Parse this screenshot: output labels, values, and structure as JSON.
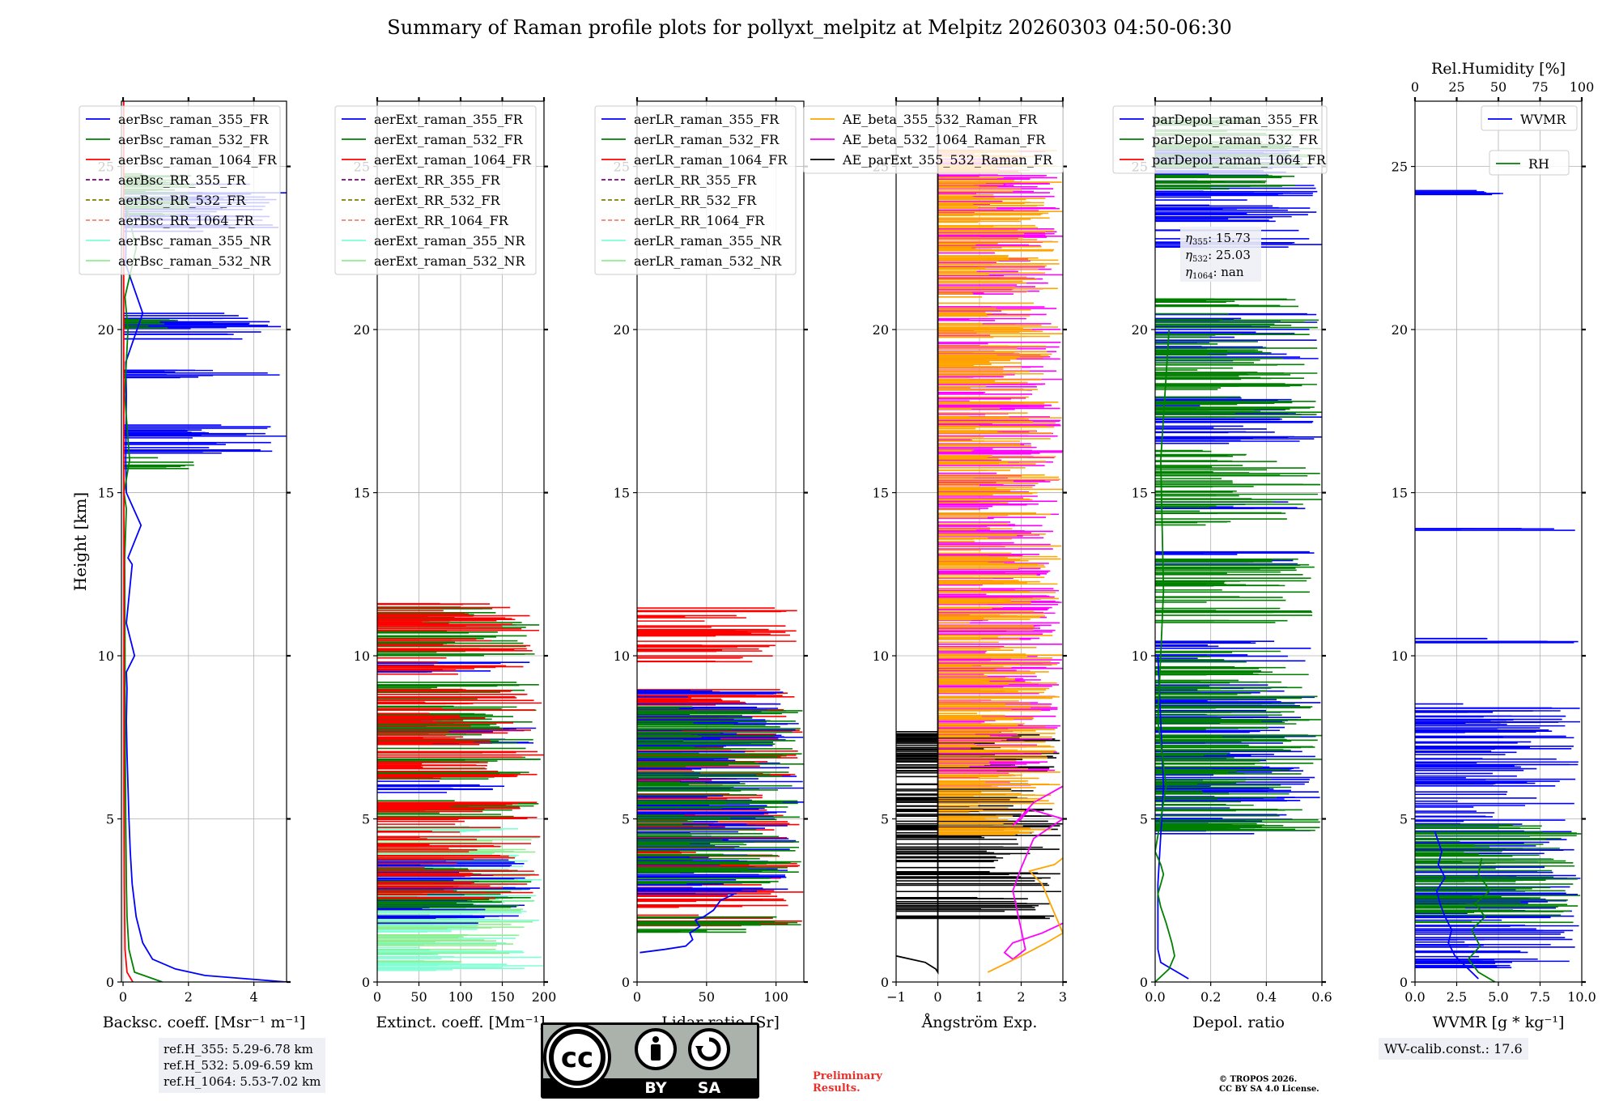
{
  "title": "Summary of Raman profile plots for pollyxt_melpitz at Melpitz 20260303 04:50-06:30",
  "y_label": "Height [km]",
  "y_ticks": [
    "0",
    "5",
    "10",
    "15",
    "20",
    "25"
  ],
  "colors": {
    "blue": "#0000ff",
    "green": "#008000",
    "red": "#ff0000",
    "purple": "#800080",
    "olive": "#808000",
    "salmon": "#fa8072",
    "cyan": "#7fffd4",
    "lightgreen": "#90ee90",
    "orange": "#ffa500",
    "magenta": "#ff00ff",
    "black": "#000000"
  },
  "chart_data": [
    {
      "type": "line",
      "id": "bsc",
      "xlabel": "Backsc. coeff. [Msr⁻¹ m⁻¹]",
      "x_ticks": [
        "0",
        "2",
        "4"
      ],
      "xlim": [
        -0.05,
        5.0
      ],
      "ylim": [
        0,
        27
      ],
      "legend": [
        "aerBsc_raman_355_FR",
        "aerBsc_raman_532_FR",
        "aerBsc_raman_1064_FR",
        "aerBsc_RR_355_FR",
        "aerBsc_RR_532_FR",
        "aerBsc_RR_1064_FR",
        "aerBsc_raman_355_NR",
        "aerBsc_raman_532_NR"
      ],
      "series": [
        {
          "name": "aerBsc_raman_355_FR",
          "x": [
            5.0,
            2.5,
            1.6,
            0.9,
            0.6,
            0.4,
            0.28,
            0.22,
            0.18,
            0.15,
            0.12,
            0.1,
            0.12,
            0.1,
            0.35,
            0.1,
            0.28,
            0.15,
            0.55,
            0.1,
            0.08,
            0.1,
            0.08,
            0.6,
            0.08,
            0.1
          ],
          "y": [
            0,
            0.2,
            0.4,
            0.7,
            1.2,
            2.0,
            3.0,
            4.0,
            5.0,
            6.0,
            7.0,
            8.0,
            9.0,
            9.5,
            10.0,
            11.0,
            12.8,
            13.0,
            14.0,
            15.0,
            16.0,
            18.0,
            19.0,
            20.5,
            22.0,
            24.0
          ]
        },
        {
          "name": "aerBsc_raman_532_FR",
          "x": [
            1.2,
            0.35,
            0.18,
            0.12,
            0.1,
            0.08,
            0.06,
            0.06,
            0.05,
            0.1,
            0.03,
            0.2,
            0.05,
            0.15,
            0.06,
            0.4,
            0.05
          ],
          "y": [
            0,
            0.3,
            1.0,
            2.0,
            3.0,
            5.0,
            8.0,
            10.0,
            13.0,
            14.5,
            15.0,
            16.0,
            18.0,
            20.0,
            21.0,
            22.5,
            24.0
          ]
        },
        {
          "name": "aerBsc_raman_1064_FR",
          "x": [
            0.3,
            0.12,
            0.06,
            0.04,
            0.03,
            0.03,
            0.02,
            0.02
          ],
          "y": [
            0,
            0.3,
            1.0,
            3.0,
            6.0,
            12.0,
            20.0,
            27.0
          ]
        }
      ],
      "spike_bands": [
        {
          "name": "aerBsc_raman_355_FR",
          "ranges": [
            [
              16.1,
              17.1
            ],
            [
              18.4,
              18.9
            ],
            [
              19.7,
              20.5
            ],
            [
              23.0,
              24.5
            ]
          ],
          "max": 5.0
        },
        {
          "name": "aerBsc_raman_532_FR",
          "ranges": [
            [
              15.7,
              16.1
            ],
            [
              20.0,
              20.4
            ],
            [
              23.5,
              24.8
            ]
          ],
          "max": 2.2
        }
      ]
    },
    {
      "type": "line",
      "id": "ext",
      "xlabel": "Extinct. coeff. [Mm⁻¹]",
      "x_ticks": [
        "0",
        "50",
        "100",
        "150",
        "200"
      ],
      "xlim": [
        0,
        200
      ],
      "ylim": [
        0,
        27
      ],
      "legend": [
        "aerExt_raman_355_FR",
        "aerExt_raman_532_FR",
        "aerExt_raman_1064_FR",
        "aerExt_RR_355_FR",
        "aerExt_RR_532_FR",
        "aerExt_RR_1064_FR",
        "aerExt_raman_355_NR",
        "aerExt_raman_532_NR"
      ],
      "spike_bands": [
        {
          "name": "aerExt_raman_355_NR",
          "ranges": [
            [
              0.3,
              4.8
            ]
          ],
          "max": 200
        },
        {
          "name": "aerExt_raman_532_NR",
          "ranges": [
            [
              0.6,
              4.4
            ]
          ],
          "max": 190
        },
        {
          "name": "aerExt_raman_355_FR",
          "ranges": [
            [
              1.8,
              3.8
            ],
            [
              5.8,
              6.2
            ],
            [
              7.3,
              8.1
            ],
            [
              9.5,
              9.9
            ]
          ],
          "max": 200
        },
        {
          "name": "aerExt_raman_532_FR",
          "ranges": [
            [
              2.2,
              3.5
            ],
            [
              5.0,
              5.6
            ],
            [
              6.2,
              9.2
            ],
            [
              10.0,
              11.6
            ]
          ],
          "max": 200
        },
        {
          "name": "aerExt_raman_1064_FR",
          "ranges": [
            [
              2.5,
              5.6
            ],
            [
              6.2,
              9.0
            ],
            [
              9.4,
              11.6
            ]
          ],
          "max": 200
        }
      ]
    },
    {
      "type": "line",
      "id": "lr",
      "xlabel": "Lidar ratio [Sr]",
      "x_ticks": [
        "0",
        "50",
        "100"
      ],
      "xlim": [
        0,
        120
      ],
      "ylim": [
        0,
        27
      ],
      "legend": [
        "aerLR_raman_355_FR",
        "aerLR_raman_532_FR",
        "aerLR_raman_1064_FR",
        "aerLR_RR_355_FR",
        "aerLR_RR_532_FR",
        "aerLR_RR_1064_FR",
        "aerLR_raman_355_NR",
        "aerLR_raman_532_NR"
      ],
      "series": [
        {
          "name": "aerLR_raman_355_FR",
          "x": [
            2,
            20,
            35,
            40,
            38,
            45,
            42,
            48,
            55,
            60,
            70
          ],
          "y": [
            0.9,
            1.0,
            1.1,
            1.3,
            1.5,
            1.7,
            1.9,
            2.0,
            2.2,
            2.5,
            2.7
          ]
        }
      ],
      "spike_bands": [
        {
          "name": "aerLR_raman_1064_FR",
          "ranges": [
            [
              1.5,
              9.0
            ],
            [
              9.8,
              11.5
            ]
          ],
          "max": 120
        },
        {
          "name": "aerLR_raman_355_FR",
          "ranges": [
            [
              2.7,
              9.0
            ]
          ],
          "max": 120
        },
        {
          "name": "aerLR_raman_532_FR",
          "ranges": [
            [
              1.5,
              2.0
            ],
            [
              3.0,
              8.5
            ]
          ],
          "max": 120
        }
      ]
    },
    {
      "type": "line",
      "id": "ae",
      "xlabel": "Ångström Exp.",
      "x_ticks": [
        "−1",
        "0",
        "1",
        "2",
        "3"
      ],
      "xlim": [
        -1,
        3
      ],
      "ylim": [
        0,
        27
      ],
      "legend": [
        "AE_beta_355_532_Raman_FR",
        "AE_beta_532_1064_Raman_FR",
        "AE_parExt_355_532_Raman_FR"
      ],
      "series": [
        {
          "name": "AE_parExt_355_532_Raman_FR",
          "x": [
            -1,
            -0.3,
            -0.05,
            0,
            0,
            0,
            0,
            0,
            0,
            0,
            0,
            0,
            0,
            0,
            0
          ],
          "y": [
            0.8,
            0.6,
            0.4,
            0.3,
            7.7,
            10.8,
            11.7,
            11.7,
            24.5,
            25.0,
            26.0,
            26.5,
            26.8,
            27.0,
            27.0
          ]
        },
        {
          "name": "AE_beta_532_1064_Raman_FR",
          "x": [
            3.0,
            2.5,
            1.8,
            1.6,
            1.8,
            2.1,
            1.8,
            2.0,
            2.3,
            3.0,
            2.2,
            2.0,
            1.8,
            2.3,
            3.0
          ],
          "y": [
            1.8,
            1.5,
            1.2,
            0.9,
            0.7,
            1.0,
            2.8,
            3.5,
            4.4,
            5.0,
            5.3,
            5.0,
            4.8,
            5.5,
            6.0
          ]
        },
        {
          "name": "AE_beta_355_532_Raman_FR",
          "x": [
            1.2,
            2.0,
            2.6,
            3.0,
            2.5,
            2.2,
            2.8,
            3.0
          ],
          "y": [
            0.3,
            0.8,
            1.2,
            1.5,
            3.0,
            3.4,
            3.6,
            3.8
          ]
        }
      ],
      "spike_bands": [
        {
          "name": "AE_parExt_355_532_Raman_FR",
          "ranges": [
            [
              1.8,
              7.7
            ]
          ],
          "max": 3.0
        },
        {
          "name": "AE_beta_532_1064_Raman_FR",
          "ranges": [
            [
              6.0,
              25.5
            ]
          ],
          "max": 3.0
        },
        {
          "name": "AE_beta_355_532_Raman_FR",
          "ranges": [
            [
              4.5,
              25.5
            ]
          ],
          "max": 3.0
        }
      ]
    },
    {
      "type": "line",
      "id": "depol",
      "xlabel": "Depol. ratio",
      "x_ticks": [
        "0.0",
        "0.2",
        "0.4",
        "0.6"
      ],
      "xlim": [
        0,
        0.6
      ],
      "ylim": [
        0,
        27
      ],
      "legend": [
        "parDepol_raman_355_FR",
        "parDepol_raman_532_FR",
        "parDepol_raman_1064_FR"
      ],
      "annotation": {
        "l1": "η",
        "s1": "355",
        "v1": ": 15.73",
        "s2": "532",
        "v2": ": 25.03",
        "s3": "1064",
        "v3": ": nan"
      },
      "series": [
        {
          "name": "parDepol_raman_355_FR",
          "x": [
            0.12,
            0.08,
            0.04,
            0.02,
            0.01,
            0.01,
            0.02,
            0.03,
            0.01
          ],
          "y": [
            0.1,
            0.3,
            0.5,
            0.6,
            1.0,
            3.0,
            4.5,
            6.0,
            10.0
          ]
        },
        {
          "name": "parDepol_raman_532_FR",
          "x": [
            0.0,
            0.05,
            0.07,
            0.06,
            0.04,
            0.02,
            0.01,
            0.02,
            0.03,
            0.02,
            0.0,
            0.02,
            0.04,
            0.01,
            0.03,
            0.02,
            0.05
          ],
          "y": [
            0.0,
            0.4,
            0.8,
            1.2,
            1.8,
            2.3,
            2.7,
            3.0,
            3.3,
            3.6,
            4.0,
            5.0,
            6.0,
            8.0,
            12.0,
            16.0,
            20.0
          ]
        }
      ],
      "spike_bands": [
        {
          "name": "parDepol_raman_355_FR",
          "ranges": [
            [
              4.5,
              9.2
            ],
            [
              9.8,
              10.5
            ],
            [
              12.8,
              13.2
            ],
            [
              14.5,
              14.8
            ],
            [
              16.5,
              18.0
            ],
            [
              19.0,
              20.5
            ],
            [
              22.5,
              25.6
            ]
          ],
          "max": 0.6
        },
        {
          "name": "parDepol_raman_532_FR",
          "ranges": [
            [
              4.6,
              10.2
            ],
            [
              11.0,
              13.0
            ],
            [
              14.0,
              16.3
            ],
            [
              17.3,
              21.0
            ],
            [
              24.3,
              26.5
            ]
          ],
          "max": 0.6
        }
      ]
    },
    {
      "type": "line",
      "id": "wv",
      "xlabel": "WVMR [g * kg⁻¹]",
      "x_ticks": [
        "0.0",
        "2.5",
        "5.0",
        "7.5",
        "10.0"
      ],
      "xlim": [
        0,
        10
      ],
      "ylim": [
        0,
        27
      ],
      "top_xlabel": "Rel.Humidity [%]",
      "top_ticks": [
        "0",
        "25",
        "50",
        "75",
        "100"
      ],
      "legend": [
        "WVMR",
        "RH"
      ],
      "calib": "WV-calib.const.: 17.6",
      "series": [
        {
          "name": "WVMR",
          "x": [
            3.8,
            3.0,
            2.4,
            2.0,
            2.2,
            1.8,
            1.5,
            1.3,
            1.8,
            1.4,
            1.6,
            1.2
          ],
          "y": [
            0.1,
            0.5,
            0.8,
            1.2,
            1.6,
            2.0,
            2.4,
            2.8,
            3.2,
            3.6,
            4.0,
            4.6
          ]
        },
        {
          "name": "RH",
          "x": [
            4.8,
            3.8,
            3.2,
            3.9,
            3.4,
            4.2,
            3.6,
            4.5,
            3.8,
            4.0
          ],
          "y": [
            0.0,
            0.3,
            0.7,
            1.1,
            1.6,
            2.0,
            2.4,
            2.8,
            3.3,
            3.8
          ]
        }
      ],
      "spike_bands": [
        {
          "name": "WVMR",
          "ranges": [
            [
              0.4,
              8.6
            ],
            [
              10.4,
              10.6
            ],
            [
              13.7,
              13.9
            ],
            [
              24.1,
              24.3
            ]
          ],
          "max": 10
        },
        {
          "name": "RH",
          "ranges": [
            [
              1.8,
              5.0
            ]
          ],
          "max": 10
        }
      ]
    }
  ],
  "ref_box": {
    "l1": "ref.H_355: 5.29-6.78 km",
    "l2": "ref.H_532: 5.09-6.59 km",
    "l3": "ref.H_1064: 5.53-7.02 km"
  },
  "logo": {
    "cc": "cc",
    "by": "BY",
    "sa": "SA"
  },
  "prelim": {
    "l1": "Preliminary",
    "l2": "Results."
  },
  "copyright": {
    "l1": "© TROPOS 2026.",
    "l2": "CC BY SA 4.0 License."
  }
}
